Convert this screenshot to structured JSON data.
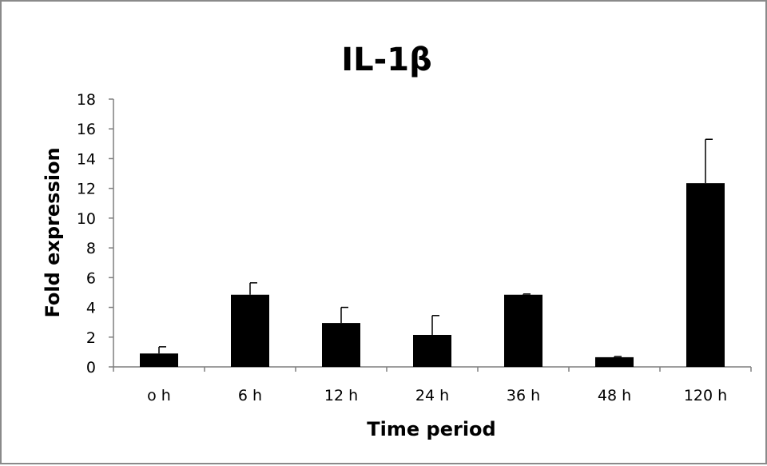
{
  "chart_data": {
    "type": "bar",
    "title": "IL-1β",
    "xlabel": "Time period",
    "ylabel": "Fold expression",
    "categories": [
      "o h",
      "6 h",
      "12 h",
      "24 h",
      "36 h",
      "48 h",
      "120 h"
    ],
    "series": [
      {
        "values": [
          0.9,
          4.85,
          2.95,
          2.15,
          4.85,
          0.65,
          12.35
        ],
        "error_upper": [
          0.45,
          0.8,
          1.05,
          1.3,
          0.05,
          0.05,
          2.95
        ]
      }
    ],
    "ylim": [
      0,
      18
    ],
    "yticks": [
      0,
      2,
      4,
      6,
      8,
      10,
      12,
      14,
      16,
      18
    ],
    "grid": false,
    "legend": "none",
    "colors": {
      "bar": "#000000",
      "axis": "#7f7f7f",
      "frame": "#8a8a8a"
    }
  }
}
